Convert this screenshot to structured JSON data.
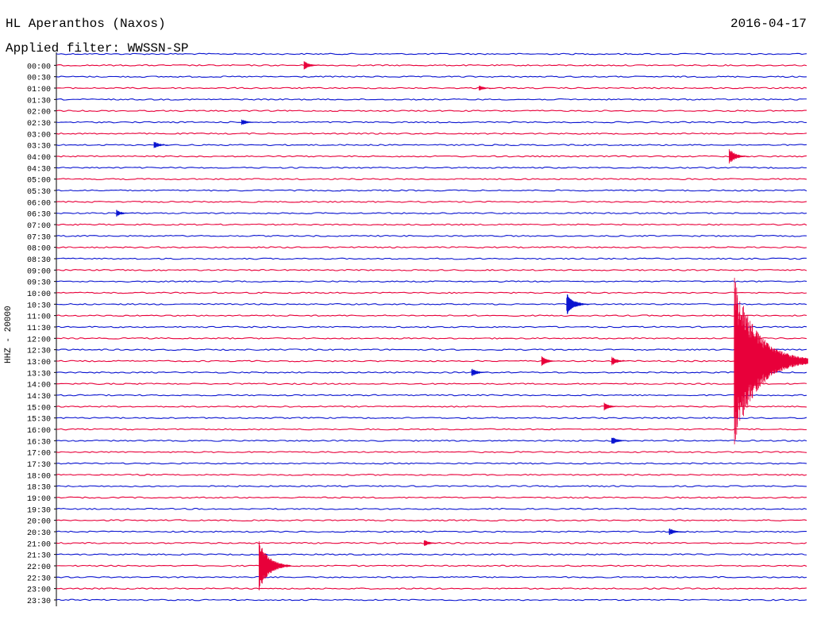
{
  "header": {
    "title": "HL Aperanthos (Naxos)",
    "date": "2016-04-17",
    "filter": "Applied filter: WWSSN-SP",
    "channel": "HHZ - 20000"
  },
  "colors": {
    "odd": "#e8003a",
    "even": "#0a14d0",
    "axis": "#000000"
  },
  "chart_data": {
    "type": "seismogram",
    "title": "HL Aperanthos (Naxos)",
    "ylabel": "HHZ - 20000",
    "filter": "WWSSN-SP",
    "date": "2016-04-17",
    "row_labels": [
      "00:00",
      "00:30",
      "01:00",
      "01:30",
      "02:00",
      "02:30",
      "03:00",
      "03:30",
      "04:00",
      "04:30",
      "05:00",
      "05:30",
      "06:00",
      "06:30",
      "07:00",
      "07:30",
      "08:00",
      "08:30",
      "09:00",
      "09:30",
      "10:00",
      "10:30",
      "11:00",
      "11:30",
      "12:00",
      "12:30",
      "13:00",
      "13:30",
      "14:00",
      "14:30",
      "15:00",
      "15:30",
      "16:00",
      "16:30",
      "17:00",
      "17:30",
      "18:00",
      "18:30",
      "19:00",
      "19:30",
      "20:00",
      "20:30",
      "21:00",
      "21:30",
      "22:00",
      "22:30",
      "23:00",
      "23:30"
    ],
    "row_color_pattern": [
      "even",
      "odd"
    ],
    "events": [
      {
        "row": "00:00",
        "minute": 10,
        "amplitude": 0.4
      },
      {
        "row": "01:00",
        "minute": 17,
        "amplitude": 0.25
      },
      {
        "row": "02:30",
        "minute": 7.5,
        "amplitude": 0.3
      },
      {
        "row": "03:30",
        "minute": 4,
        "amplitude": 0.35
      },
      {
        "row": "04:00",
        "minute": 27,
        "amplitude": 0.7
      },
      {
        "row": "06:30",
        "minute": 2.5,
        "amplitude": 0.3
      },
      {
        "row": "10:30",
        "minute": 20.5,
        "amplitude": 1.0
      },
      {
        "row": "13:00",
        "minute": 19.5,
        "amplitude": 0.45
      },
      {
        "row": "13:00",
        "minute": 22.3,
        "amplitude": 0.4
      },
      {
        "row": "13:00",
        "minute": 27.2,
        "amplitude": 7.5
      },
      {
        "row": "13:30",
        "minute": 16.7,
        "amplitude": 0.4
      },
      {
        "row": "15:00",
        "minute": 22,
        "amplitude": 0.35
      },
      {
        "row": "16:30",
        "minute": 22.3,
        "amplitude": 0.4
      },
      {
        "row": "20:30",
        "minute": 24.6,
        "amplitude": 0.35
      },
      {
        "row": "21:00",
        "minute": 14.8,
        "amplitude": 0.3
      },
      {
        "row": "22:00",
        "minute": 8.2,
        "amplitude": 2.2
      }
    ]
  }
}
